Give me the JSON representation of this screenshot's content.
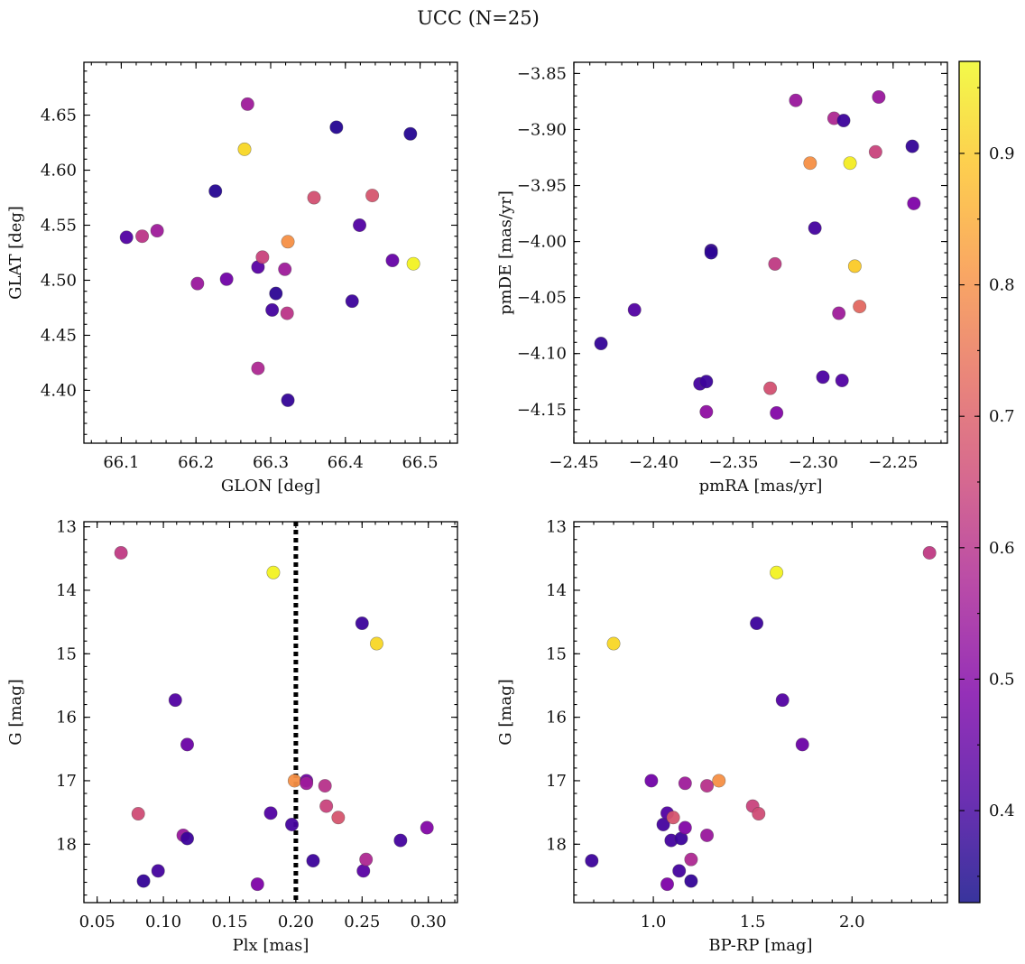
{
  "figure": {
    "title": "UCC (N=25)"
  },
  "colorbar": {
    "colormap": "plasma",
    "range": [
      0.33,
      0.97
    ],
    "ticks": [
      0.4,
      0.5,
      0.6,
      0.7,
      0.8,
      0.9
    ],
    "tick_labels": [
      "0.4",
      "0.5",
      "0.6",
      "0.7",
      "0.8",
      "0.9"
    ]
  },
  "chart_data": [
    {
      "type": "scatter",
      "id": "ax1",
      "xlabel": "GLON [deg]",
      "ylabel": "GLAT [deg]",
      "xlim": [
        66.05,
        66.55
      ],
      "ylim": [
        4.352,
        4.698
      ],
      "y_inverted": false,
      "xticks": [
        66.1,
        66.2,
        66.3,
        66.4,
        66.5
      ],
      "xtick_labels": [
        "66.1",
        "66.2",
        "66.3",
        "66.4",
        "66.5"
      ],
      "yticks": [
        4.4,
        4.45,
        4.5,
        4.55,
        4.6,
        4.65
      ],
      "ytick_labels": [
        "4.40",
        "4.45",
        "4.50",
        "4.55",
        "4.60",
        "4.65"
      ],
      "points": [
        {
          "x": 66.107,
          "y": 4.539,
          "c": 0.42
        },
        {
          "x": 66.128,
          "y": 4.54,
          "c": 0.61
        },
        {
          "x": 66.148,
          "y": 4.545,
          "c": 0.55
        },
        {
          "x": 66.202,
          "y": 4.497,
          "c": 0.54
        },
        {
          "x": 66.226,
          "y": 4.581,
          "c": 0.36
        },
        {
          "x": 66.241,
          "y": 4.501,
          "c": 0.47
        },
        {
          "x": 66.265,
          "y": 4.619,
          "c": 0.92
        },
        {
          "x": 66.269,
          "y": 4.66,
          "c": 0.55
        },
        {
          "x": 66.283,
          "y": 4.512,
          "c": 0.43
        },
        {
          "x": 66.283,
          "y": 4.42,
          "c": 0.58
        },
        {
          "x": 66.289,
          "y": 4.521,
          "c": 0.64
        },
        {
          "x": 66.302,
          "y": 4.473,
          "c": 0.4
        },
        {
          "x": 66.307,
          "y": 4.488,
          "c": 0.37
        },
        {
          "x": 66.319,
          "y": 4.51,
          "c": 0.55
        },
        {
          "x": 66.322,
          "y": 4.47,
          "c": 0.61
        },
        {
          "x": 66.323,
          "y": 4.391,
          "c": 0.38
        },
        {
          "x": 66.323,
          "y": 4.535,
          "c": 0.8
        },
        {
          "x": 66.358,
          "y": 4.575,
          "c": 0.67
        },
        {
          "x": 66.388,
          "y": 4.639,
          "c": 0.36
        },
        {
          "x": 66.409,
          "y": 4.481,
          "c": 0.39
        },
        {
          "x": 66.419,
          "y": 4.55,
          "c": 0.42
        },
        {
          "x": 66.436,
          "y": 4.577,
          "c": 0.68
        },
        {
          "x": 66.463,
          "y": 4.518,
          "c": 0.45
        },
        {
          "x": 66.487,
          "y": 4.633,
          "c": 0.36
        },
        {
          "x": 66.491,
          "y": 4.515,
          "c": 0.96
        }
      ]
    },
    {
      "type": "scatter",
      "id": "ax2",
      "xlabel": "pmRA [mas/yr]",
      "ylabel": "pmDE [mas/yr]",
      "xlim": [
        -2.45,
        -2.216
      ],
      "ylim": [
        -4.18,
        -3.84
      ],
      "y_inverted": false,
      "xticks": [
        -2.45,
        -2.4,
        -2.35,
        -2.3,
        -2.25
      ],
      "xtick_labels": [
        "−2.45",
        "−2.40",
        "−2.35",
        "−2.30",
        "−2.25"
      ],
      "yticks": [
        -4.15,
        -4.1,
        -4.05,
        -4.0,
        -3.95,
        -3.9,
        -3.85
      ],
      "ytick_labels": [
        "−4.15",
        "−4.10",
        "−4.05",
        "−4.00",
        "−3.95",
        "−3.90",
        "−3.85"
      ],
      "points": [
        {
          "x": -2.433,
          "y": -4.091,
          "c": 0.38
        },
        {
          "x": -2.412,
          "y": -4.061,
          "c": 0.42
        },
        {
          "x": -2.371,
          "y": -4.127,
          "c": 0.4
        },
        {
          "x": -2.367,
          "y": -4.125,
          "c": 0.39
        },
        {
          "x": -2.367,
          "y": -4.152,
          "c": 0.52
        },
        {
          "x": -2.364,
          "y": -4.008,
          "c": 0.38
        },
        {
          "x": -2.364,
          "y": -4.01,
          "c": 0.37
        },
        {
          "x": -2.327,
          "y": -4.131,
          "c": 0.67
        },
        {
          "x": -2.324,
          "y": -4.02,
          "c": 0.62
        },
        {
          "x": -2.323,
          "y": -4.153,
          "c": 0.5
        },
        {
          "x": -2.311,
          "y": -3.874,
          "c": 0.54
        },
        {
          "x": -2.302,
          "y": -3.93,
          "c": 0.8
        },
        {
          "x": -2.299,
          "y": -3.988,
          "c": 0.4
        },
        {
          "x": -2.294,
          "y": -4.121,
          "c": 0.41
        },
        {
          "x": -2.287,
          "y": -3.89,
          "c": 0.58
        },
        {
          "x": -2.284,
          "y": -4.064,
          "c": 0.55
        },
        {
          "x": -2.282,
          "y": -4.124,
          "c": 0.42
        },
        {
          "x": -2.281,
          "y": -3.892,
          "c": 0.39
        },
        {
          "x": -2.277,
          "y": -3.93,
          "c": 0.95
        },
        {
          "x": -2.274,
          "y": -4.022,
          "c": 0.9
        },
        {
          "x": -2.271,
          "y": -4.058,
          "c": 0.72
        },
        {
          "x": -2.261,
          "y": -3.92,
          "c": 0.64
        },
        {
          "x": -2.259,
          "y": -3.871,
          "c": 0.54
        },
        {
          "x": -2.238,
          "y": -3.915,
          "c": 0.38
        },
        {
          "x": -2.237,
          "y": -3.966,
          "c": 0.49
        }
      ]
    },
    {
      "type": "scatter",
      "id": "ax3",
      "xlabel": "Plx [mas]",
      "ylabel": "G [mag]",
      "xlim": [
        0.04,
        0.322
      ],
      "ylim": [
        18.92,
        12.92
      ],
      "y_inverted": true,
      "xticks": [
        0.05,
        0.1,
        0.15,
        0.2,
        0.25,
        0.3
      ],
      "xtick_labels": [
        "0.05",
        "0.10",
        "0.15",
        "0.20",
        "0.25",
        "0.30"
      ],
      "yticks": [
        13,
        14,
        15,
        16,
        17,
        18
      ],
      "ytick_labels": [
        "13",
        "14",
        "15",
        "16",
        "17",
        "18"
      ],
      "vline": {
        "x": 0.2,
        "style": "dotted"
      },
      "points": [
        {
          "x": 0.068,
          "y": 13.41,
          "c": 0.62
        },
        {
          "x": 0.081,
          "y": 17.52,
          "c": 0.66
        },
        {
          "x": 0.085,
          "y": 18.58,
          "c": 0.38
        },
        {
          "x": 0.096,
          "y": 18.42,
          "c": 0.4
        },
        {
          "x": 0.109,
          "y": 15.73,
          "c": 0.42
        },
        {
          "x": 0.115,
          "y": 17.86,
          "c": 0.54
        },
        {
          "x": 0.118,
          "y": 16.43,
          "c": 0.46
        },
        {
          "x": 0.118,
          "y": 17.91,
          "c": 0.39
        },
        {
          "x": 0.171,
          "y": 18.63,
          "c": 0.49
        },
        {
          "x": 0.181,
          "y": 17.51,
          "c": 0.42
        },
        {
          "x": 0.183,
          "y": 13.72,
          "c": 0.96
        },
        {
          "x": 0.197,
          "y": 17.69,
          "c": 0.4
        },
        {
          "x": 0.199,
          "y": 17.0,
          "c": 0.8
        },
        {
          "x": 0.208,
          "y": 17.0,
          "c": 0.47
        },
        {
          "x": 0.208,
          "y": 17.04,
          "c": 0.55
        },
        {
          "x": 0.213,
          "y": 18.26,
          "c": 0.39
        },
        {
          "x": 0.222,
          "y": 17.08,
          "c": 0.6
        },
        {
          "x": 0.223,
          "y": 17.4,
          "c": 0.64
        },
        {
          "x": 0.232,
          "y": 17.58,
          "c": 0.68
        },
        {
          "x": 0.25,
          "y": 14.52,
          "c": 0.39
        },
        {
          "x": 0.251,
          "y": 18.42,
          "c": 0.43
        },
        {
          "x": 0.253,
          "y": 18.24,
          "c": 0.58
        },
        {
          "x": 0.261,
          "y": 14.84,
          "c": 0.92
        },
        {
          "x": 0.279,
          "y": 17.94,
          "c": 0.4
        },
        {
          "x": 0.299,
          "y": 17.74,
          "c": 0.5
        }
      ]
    },
    {
      "type": "scatter",
      "id": "ax4",
      "xlabel": "BP-RP [mag]",
      "ylabel": "G [mag]",
      "xlim": [
        0.6,
        2.48
      ],
      "ylim": [
        18.92,
        12.92
      ],
      "y_inverted": true,
      "xticks": [
        1.0,
        1.5,
        2.0
      ],
      "xtick_labels": [
        "1.0",
        "1.5",
        "2.0"
      ],
      "yticks": [
        13,
        14,
        15,
        16,
        17,
        18
      ],
      "ytick_labels": [
        "13",
        "14",
        "15",
        "16",
        "17",
        "18"
      ],
      "points": [
        {
          "x": 0.69,
          "y": 18.26,
          "c": 0.39
        },
        {
          "x": 0.8,
          "y": 14.84,
          "c": 0.92
        },
        {
          "x": 0.99,
          "y": 17.0,
          "c": 0.47
        },
        {
          "x": 1.05,
          "y": 17.69,
          "c": 0.4
        },
        {
          "x": 1.07,
          "y": 17.51,
          "c": 0.42
        },
        {
          "x": 1.07,
          "y": 18.63,
          "c": 0.49
        },
        {
          "x": 1.09,
          "y": 17.94,
          "c": 0.4
        },
        {
          "x": 1.1,
          "y": 17.58,
          "c": 0.68
        },
        {
          "x": 1.13,
          "y": 18.42,
          "c": 0.4
        },
        {
          "x": 1.14,
          "y": 17.91,
          "c": 0.39
        },
        {
          "x": 1.16,
          "y": 17.04,
          "c": 0.55
        },
        {
          "x": 1.16,
          "y": 17.74,
          "c": 0.5
        },
        {
          "x": 1.19,
          "y": 18.24,
          "c": 0.58
        },
        {
          "x": 1.19,
          "y": 18.58,
          "c": 0.38
        },
        {
          "x": 1.27,
          "y": 17.08,
          "c": 0.6
        },
        {
          "x": 1.27,
          "y": 17.86,
          "c": 0.54
        },
        {
          "x": 1.33,
          "y": 17.0,
          "c": 0.8
        },
        {
          "x": 1.5,
          "y": 17.4,
          "c": 0.64
        },
        {
          "x": 1.52,
          "y": 14.52,
          "c": 0.39
        },
        {
          "x": 1.53,
          "y": 17.52,
          "c": 0.66
        },
        {
          "x": 1.62,
          "y": 13.72,
          "c": 0.96
        },
        {
          "x": 1.65,
          "y": 15.73,
          "c": 0.42
        },
        {
          "x": 1.75,
          "y": 16.43,
          "c": 0.46
        },
        {
          "x": 2.39,
          "y": 13.41,
          "c": 0.62
        }
      ]
    }
  ]
}
